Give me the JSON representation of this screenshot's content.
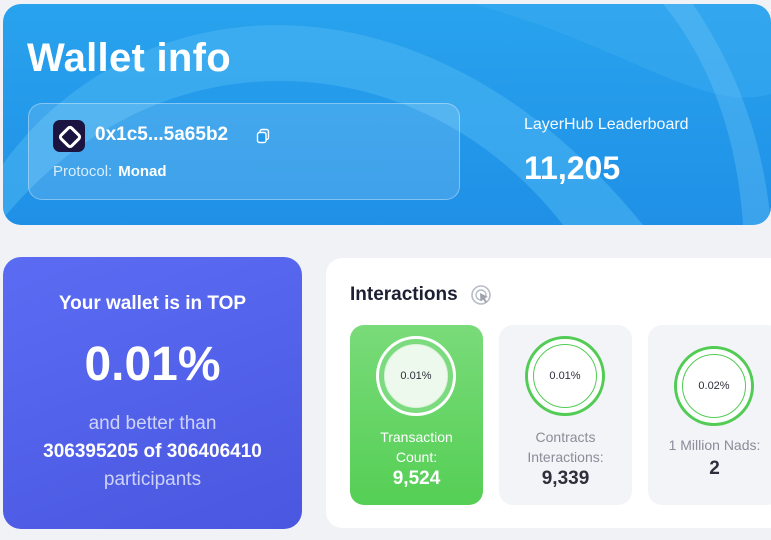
{
  "header": {
    "title": "Wallet info",
    "address": "0x1c5...5a65b2",
    "protocol_label": "Protocol:",
    "protocol_value": "Monad",
    "leaderboard_label": "LayerHub Leaderboard",
    "leaderboard_value": "11,205"
  },
  "top": {
    "line1": "Your wallet is in TOP",
    "percent": "0.01%",
    "line2": "and better than",
    "line3": "306395205 of 306406410",
    "line4": "participants"
  },
  "interactions": {
    "title": "Interactions",
    "tiles": [
      {
        "percent": "0.01%",
        "label": "Transaction Count:",
        "value": "9,524",
        "active": true
      },
      {
        "percent": "0.01%",
        "label": "Contracts Interactions:",
        "value": "9,339",
        "active": false
      },
      {
        "percent": "0.02%",
        "label": "1 Million Nads:",
        "value": "2",
        "active": false
      }
    ]
  },
  "colors": {
    "header_blue": "#1f90e6",
    "top_card_indigo": "#4a57e0",
    "active_green": "#55cf55"
  },
  "icons": [
    "monad-logo-icon",
    "copy-icon",
    "cursor-click-icon"
  ]
}
